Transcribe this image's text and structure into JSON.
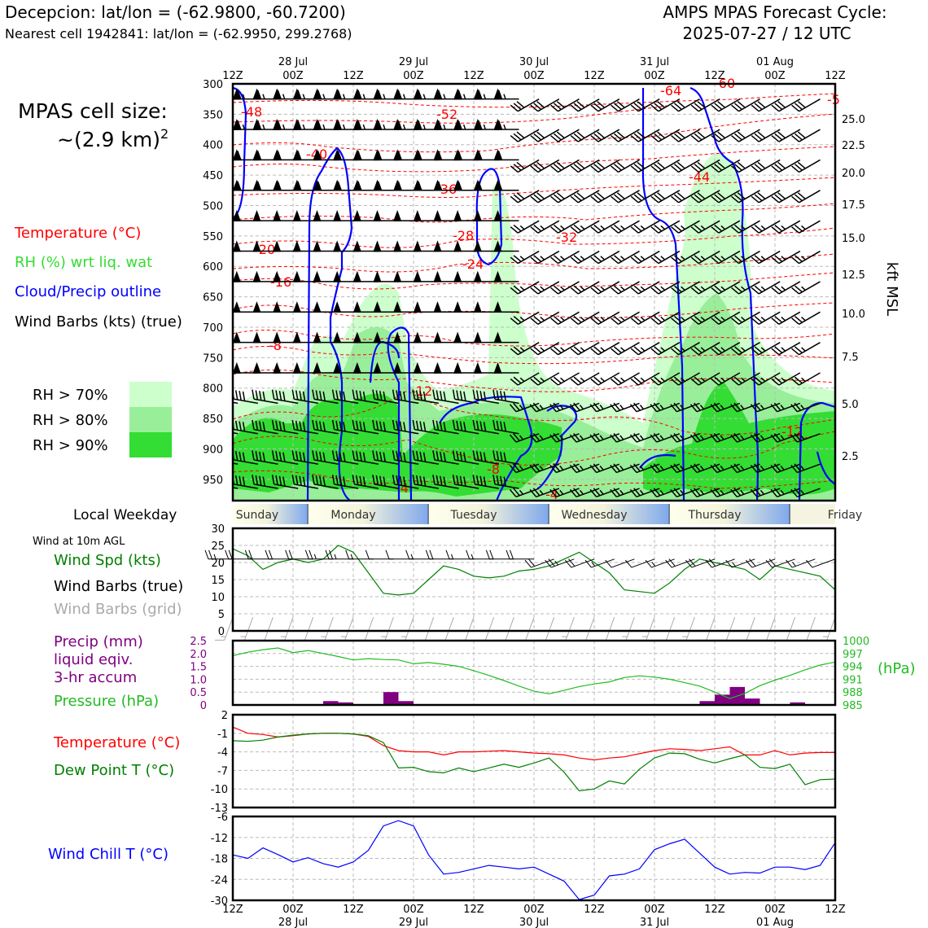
{
  "header": {
    "station_line": "Decepcion: lat/lon = (-62.9800, -60.7200)",
    "cell_line": "Nearest cell 1942841: lat/lon = (-62.9950, 299.2768)",
    "cycle_line1": "AMPS MPAS Forecast Cycle:",
    "cycle_line2": "2025-07-27 / 12 UTC"
  },
  "legend": {
    "cell_size_line1": "MPAS cell size:",
    "cell_size_line2": "~(2.9 km)",
    "cell_size_exp": "2",
    "temperature": "Temperature (°C)",
    "rh": "RH (%) wrt liq. wat",
    "cloud": "Cloud/Precip outline",
    "barbs": "Wind Barbs (kts) (true)",
    "rh70": "RH > 70%",
    "rh80": "RH > 80%",
    "rh90": "RH > 90%",
    "local_weekday": "Local Weekday",
    "wind10m": "Wind at 10m AGL",
    "wind_spd": "Wind Spd (kts)",
    "wind_barbs_true": "Wind Barbs (true)",
    "wind_barbs_grid": "Wind Barbs (grid)",
    "precip1": "Precip (mm)",
    "precip2": "liquid eqiv.",
    "precip3": "3-hr accum",
    "pressure": "Pressure (hPa)",
    "pressure_unit": "(hPa)",
    "temp2": "Temperature (°C)",
    "dewpt": "Dew Point T (°C)",
    "windchill": "Wind Chill T (°C)"
  },
  "colors": {
    "temperature": "#ff0000",
    "rh": "#33dd33",
    "cloud": "#0000ff",
    "barbs": "#000000",
    "grid_barbs": "#aaaaaa",
    "wind_spd": "#008000",
    "precip": "#800080",
    "pressure": "#22bb22",
    "dewpoint": "#008000",
    "windchill": "#0000ff",
    "rh70": "#ccffcc",
    "rh80": "#99ee99",
    "rh90": "#33dd33"
  },
  "chart_data": {
    "time_axis": {
      "hours_labels": [
        "12Z",
        "00Z",
        "12Z",
        "00Z",
        "12Z",
        "00Z",
        "12Z",
        "00Z",
        "12Z",
        "00Z",
        "12Z"
      ],
      "date_labels": [
        "28 Jul",
        "29 Jul",
        "30 Jul",
        "31 Jul",
        "01 Aug"
      ],
      "weekdays": [
        "Sunday",
        "Monday",
        "Tuesday",
        "Wednesday",
        "Thursday",
        "Friday"
      ]
    },
    "cross_section": {
      "type": "heatmap",
      "pressure_ticks": [
        300,
        350,
        400,
        450,
        500,
        550,
        600,
        650,
        700,
        750,
        800,
        850,
        900,
        950
      ],
      "height_ticks_kft": [
        "25.0",
        "22.5",
        "20.0",
        "17.5",
        "15.0",
        "12.5",
        "10.0",
        "7.5",
        "5.0",
        "2.5"
      ],
      "height_label": "kft MSL",
      "temperature_labels": [
        "-48",
        "-52",
        "-64",
        "-60",
        "-40",
        "-44",
        "-36",
        "-28",
        "-32",
        "-20",
        "-24",
        "-16",
        "-8",
        "-12",
        "-12",
        "-8",
        "-4",
        "-4",
        "-5"
      ],
      "wind_barbs_note": "westerly barbs at all levels"
    },
    "surface_wind": {
      "type": "line",
      "ylim": [
        0,
        30
      ],
      "yticks": [
        0,
        5,
        10,
        15,
        20,
        25,
        30
      ],
      "x_hours": [
        0,
        3,
        6,
        9,
        12,
        15,
        18,
        21,
        24,
        27,
        30,
        33,
        36,
        39,
        42,
        45,
        48,
        51,
        54,
        57,
        60,
        63,
        66,
        69,
        72,
        75,
        78,
        81,
        84,
        87,
        90,
        93,
        96,
        99,
        102,
        105,
        108,
        111,
        114,
        117,
        120
      ],
      "speed_kts": [
        24,
        22,
        18,
        20,
        21,
        20,
        21,
        25,
        23,
        17,
        11,
        10.5,
        11,
        15,
        19,
        18,
        16,
        15.5,
        16,
        17.5,
        18,
        19,
        21,
        23,
        20,
        17,
        12,
        11.5,
        11,
        14,
        18,
        21,
        20,
        19,
        18,
        15,
        19,
        18,
        17,
        16,
        12
      ]
    },
    "precip_pressure": {
      "type": "bar",
      "precip_ylim": [
        0,
        2.5
      ],
      "precip_yticks": [
        "0",
        "0.5",
        "1.0",
        "1.5",
        "2.0",
        "2.5"
      ],
      "pressure_yticks": [
        "985",
        "988",
        "991",
        "994",
        "997",
        "1000"
      ],
      "precip_bars": [
        {
          "x_start": 18,
          "x_end": 21,
          "value": 0.15
        },
        {
          "x_start": 21,
          "x_end": 24,
          "value": 0.1
        },
        {
          "x_start": 30,
          "x_end": 33,
          "value": 0.5
        },
        {
          "x_start": 33,
          "x_end": 36,
          "value": 0.15
        },
        {
          "x_start": 93,
          "x_end": 96,
          "value": 0.15
        },
        {
          "x_start": 96,
          "x_end": 99,
          "value": 0.4
        },
        {
          "x_start": 99,
          "x_end": 102,
          "value": 0.7
        },
        {
          "x_start": 102,
          "x_end": 105,
          "value": 0.25
        },
        {
          "x_start": 111,
          "x_end": 114,
          "value": 0.1
        }
      ],
      "pressure_hpa": [
        996.5,
        997.3,
        997.9,
        998.3,
        997.2,
        997.7,
        997,
        996.3,
        995.5,
        995.8,
        995.6,
        995.5,
        994.6,
        994.9,
        994.5,
        994,
        993,
        991.9,
        990.7,
        989.4,
        988.2,
        987.6,
        988.4,
        989.3,
        989.9,
        990.4,
        991.4,
        991.8,
        991.5,
        991,
        990.2,
        989.4,
        988,
        986.5,
        987.7,
        989.5,
        990.8,
        991.9,
        993.2,
        994.3,
        995
      ]
    },
    "temp_dew": {
      "type": "line",
      "ylim": [
        -13,
        2
      ],
      "yticks": [
        "2",
        "-1",
        "-4",
        "-7",
        "-10",
        "-13"
      ],
      "temperature": [
        0,
        -1,
        -1.2,
        -1.6,
        -1.4,
        -1.1,
        -1,
        -1,
        -1.1,
        -1.5,
        -3,
        -3.8,
        -4,
        -4,
        -4.5,
        -4,
        -4,
        -3.9,
        -3.8,
        -4,
        -4.2,
        -4.3,
        -4.5,
        -5,
        -5.3,
        -5,
        -4.8,
        -4.3,
        -3.8,
        -3.5,
        -3.6,
        -3.8,
        -3.5,
        -3.2,
        -4.5,
        -4.5,
        -3.8,
        -4.5,
        -4.2,
        -4.1,
        -4.1
      ],
      "dewpoint": [
        -2.2,
        -2.3,
        -2.1,
        -1.6,
        -1.3,
        -1.1,
        -1,
        -1,
        -1.1,
        -1.4,
        -2.5,
        -6.6,
        -6.5,
        -7.2,
        -7.4,
        -6.6,
        -7.2,
        -6.6,
        -6,
        -6.5,
        -5.8,
        -5,
        -7.3,
        -10.3,
        -10,
        -8.7,
        -9.2,
        -6.8,
        -5,
        -4.2,
        -4.3,
        -5.2,
        -5.8,
        -5.1,
        -4.5,
        -6.5,
        -6.7,
        -6,
        -9.3,
        -8.5,
        -8.4
      ]
    },
    "wind_chill": {
      "type": "line",
      "ylim": [
        -30,
        -6
      ],
      "yticks": [
        "-6",
        "-12",
        "-18",
        "-24",
        "-30"
      ],
      "values": [
        -17,
        -18,
        -15,
        -16.9,
        -19,
        -17.8,
        -19.5,
        -20.5,
        -19,
        -15.7,
        -8.7,
        -7.2,
        -8.7,
        -17,
        -22.5,
        -22,
        -21,
        -20,
        -20.5,
        -21,
        -20.5,
        -22.5,
        -24.5,
        -29.8,
        -28.5,
        -23,
        -22.5,
        -21,
        -15.5,
        -13.8,
        -12.5,
        -16.5,
        -20.5,
        -22.5,
        -22,
        -22.2,
        -20.5,
        -20.5,
        -21.2,
        -20,
        -13.5
      ]
    }
  }
}
